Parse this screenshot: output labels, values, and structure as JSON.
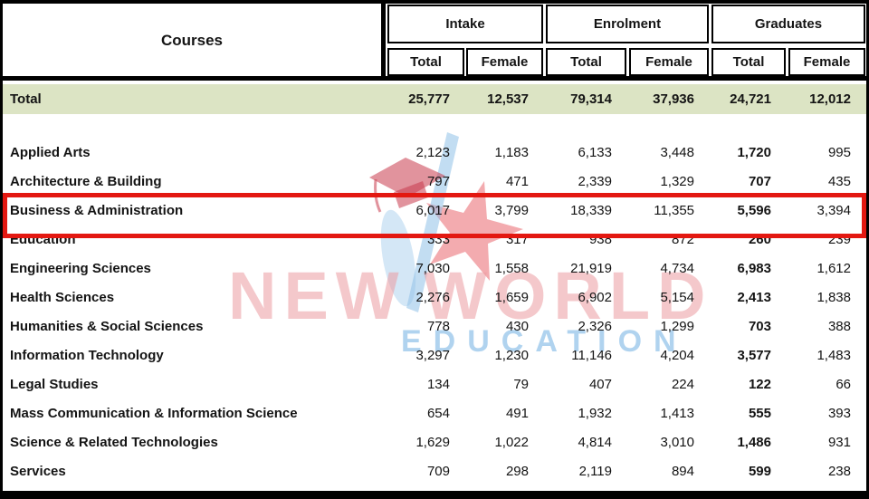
{
  "columns": {
    "courses_label": "Courses",
    "groups": [
      {
        "label": "Intake",
        "sub": [
          "Total",
          "Female"
        ]
      },
      {
        "label": "Enrolment",
        "sub": [
          "Total",
          "Female"
        ]
      },
      {
        "label": "Graduates",
        "sub": [
          "Total",
          "Female"
        ]
      }
    ]
  },
  "total_row": {
    "label": "Total",
    "values": [
      "25,777",
      "12,537",
      "79,314",
      "37,936",
      "24,721",
      "12,012"
    ]
  },
  "rows": [
    {
      "label": "Applied Arts",
      "values": [
        "2,123",
        "1,183",
        "6,133",
        "3,448",
        "1,720",
        "995"
      ],
      "highlighted": false
    },
    {
      "label": "Architecture & Building",
      "values": [
        "797",
        "471",
        "2,339",
        "1,329",
        "707",
        "435"
      ],
      "highlighted": false
    },
    {
      "label": "Business & Administration",
      "values": [
        "6,017",
        "3,799",
        "18,339",
        "11,355",
        "5,596",
        "3,394"
      ],
      "highlighted": true
    },
    {
      "label": "Education",
      "values": [
        "333",
        "317",
        "938",
        "872",
        "260",
        "239"
      ],
      "highlighted": false
    },
    {
      "label": "Engineering Sciences",
      "values": [
        "7,030",
        "1,558",
        "21,919",
        "4,734",
        "6,983",
        "1,612"
      ],
      "highlighted": false
    },
    {
      "label": "Health Sciences",
      "values": [
        "2,276",
        "1,659",
        "6,902",
        "5,154",
        "2,413",
        "1,838"
      ],
      "highlighted": false
    },
    {
      "label": "Humanities & Social Sciences",
      "values": [
        "778",
        "430",
        "2,326",
        "1,299",
        "703",
        "388"
      ],
      "highlighted": false
    },
    {
      "label": "Information Technology",
      "values": [
        "3,297",
        "1,230",
        "11,146",
        "4,204",
        "3,577",
        "1,483"
      ],
      "highlighted": false
    },
    {
      "label": "Legal Studies",
      "values": [
        "134",
        "79",
        "407",
        "224",
        "122",
        "66"
      ],
      "highlighted": false
    },
    {
      "label": "Mass Communication & Information Science",
      "values": [
        "654",
        "491",
        "1,932",
        "1,413",
        "555",
        "393"
      ],
      "highlighted": false
    },
    {
      "label": "Science & Related Technologies",
      "values": [
        "1,629",
        "1,022",
        "4,814",
        "3,010",
        "1,486",
        "931"
      ],
      "highlighted": false
    },
    {
      "label": "Services",
      "values": [
        "709",
        "298",
        "2,119",
        "894",
        "599",
        "238"
      ],
      "highlighted": false
    }
  ],
  "watermark": {
    "line1": "NEW",
    "line2": "WORLD",
    "line3": "EDUCATION"
  },
  "colors": {
    "total_row_bg": "#dce4c4",
    "highlight_border": "#e31811",
    "watermark_pink": "#eb9aa0",
    "watermark_blue": "#8fc1e8",
    "watermark_red": "#e23840"
  }
}
